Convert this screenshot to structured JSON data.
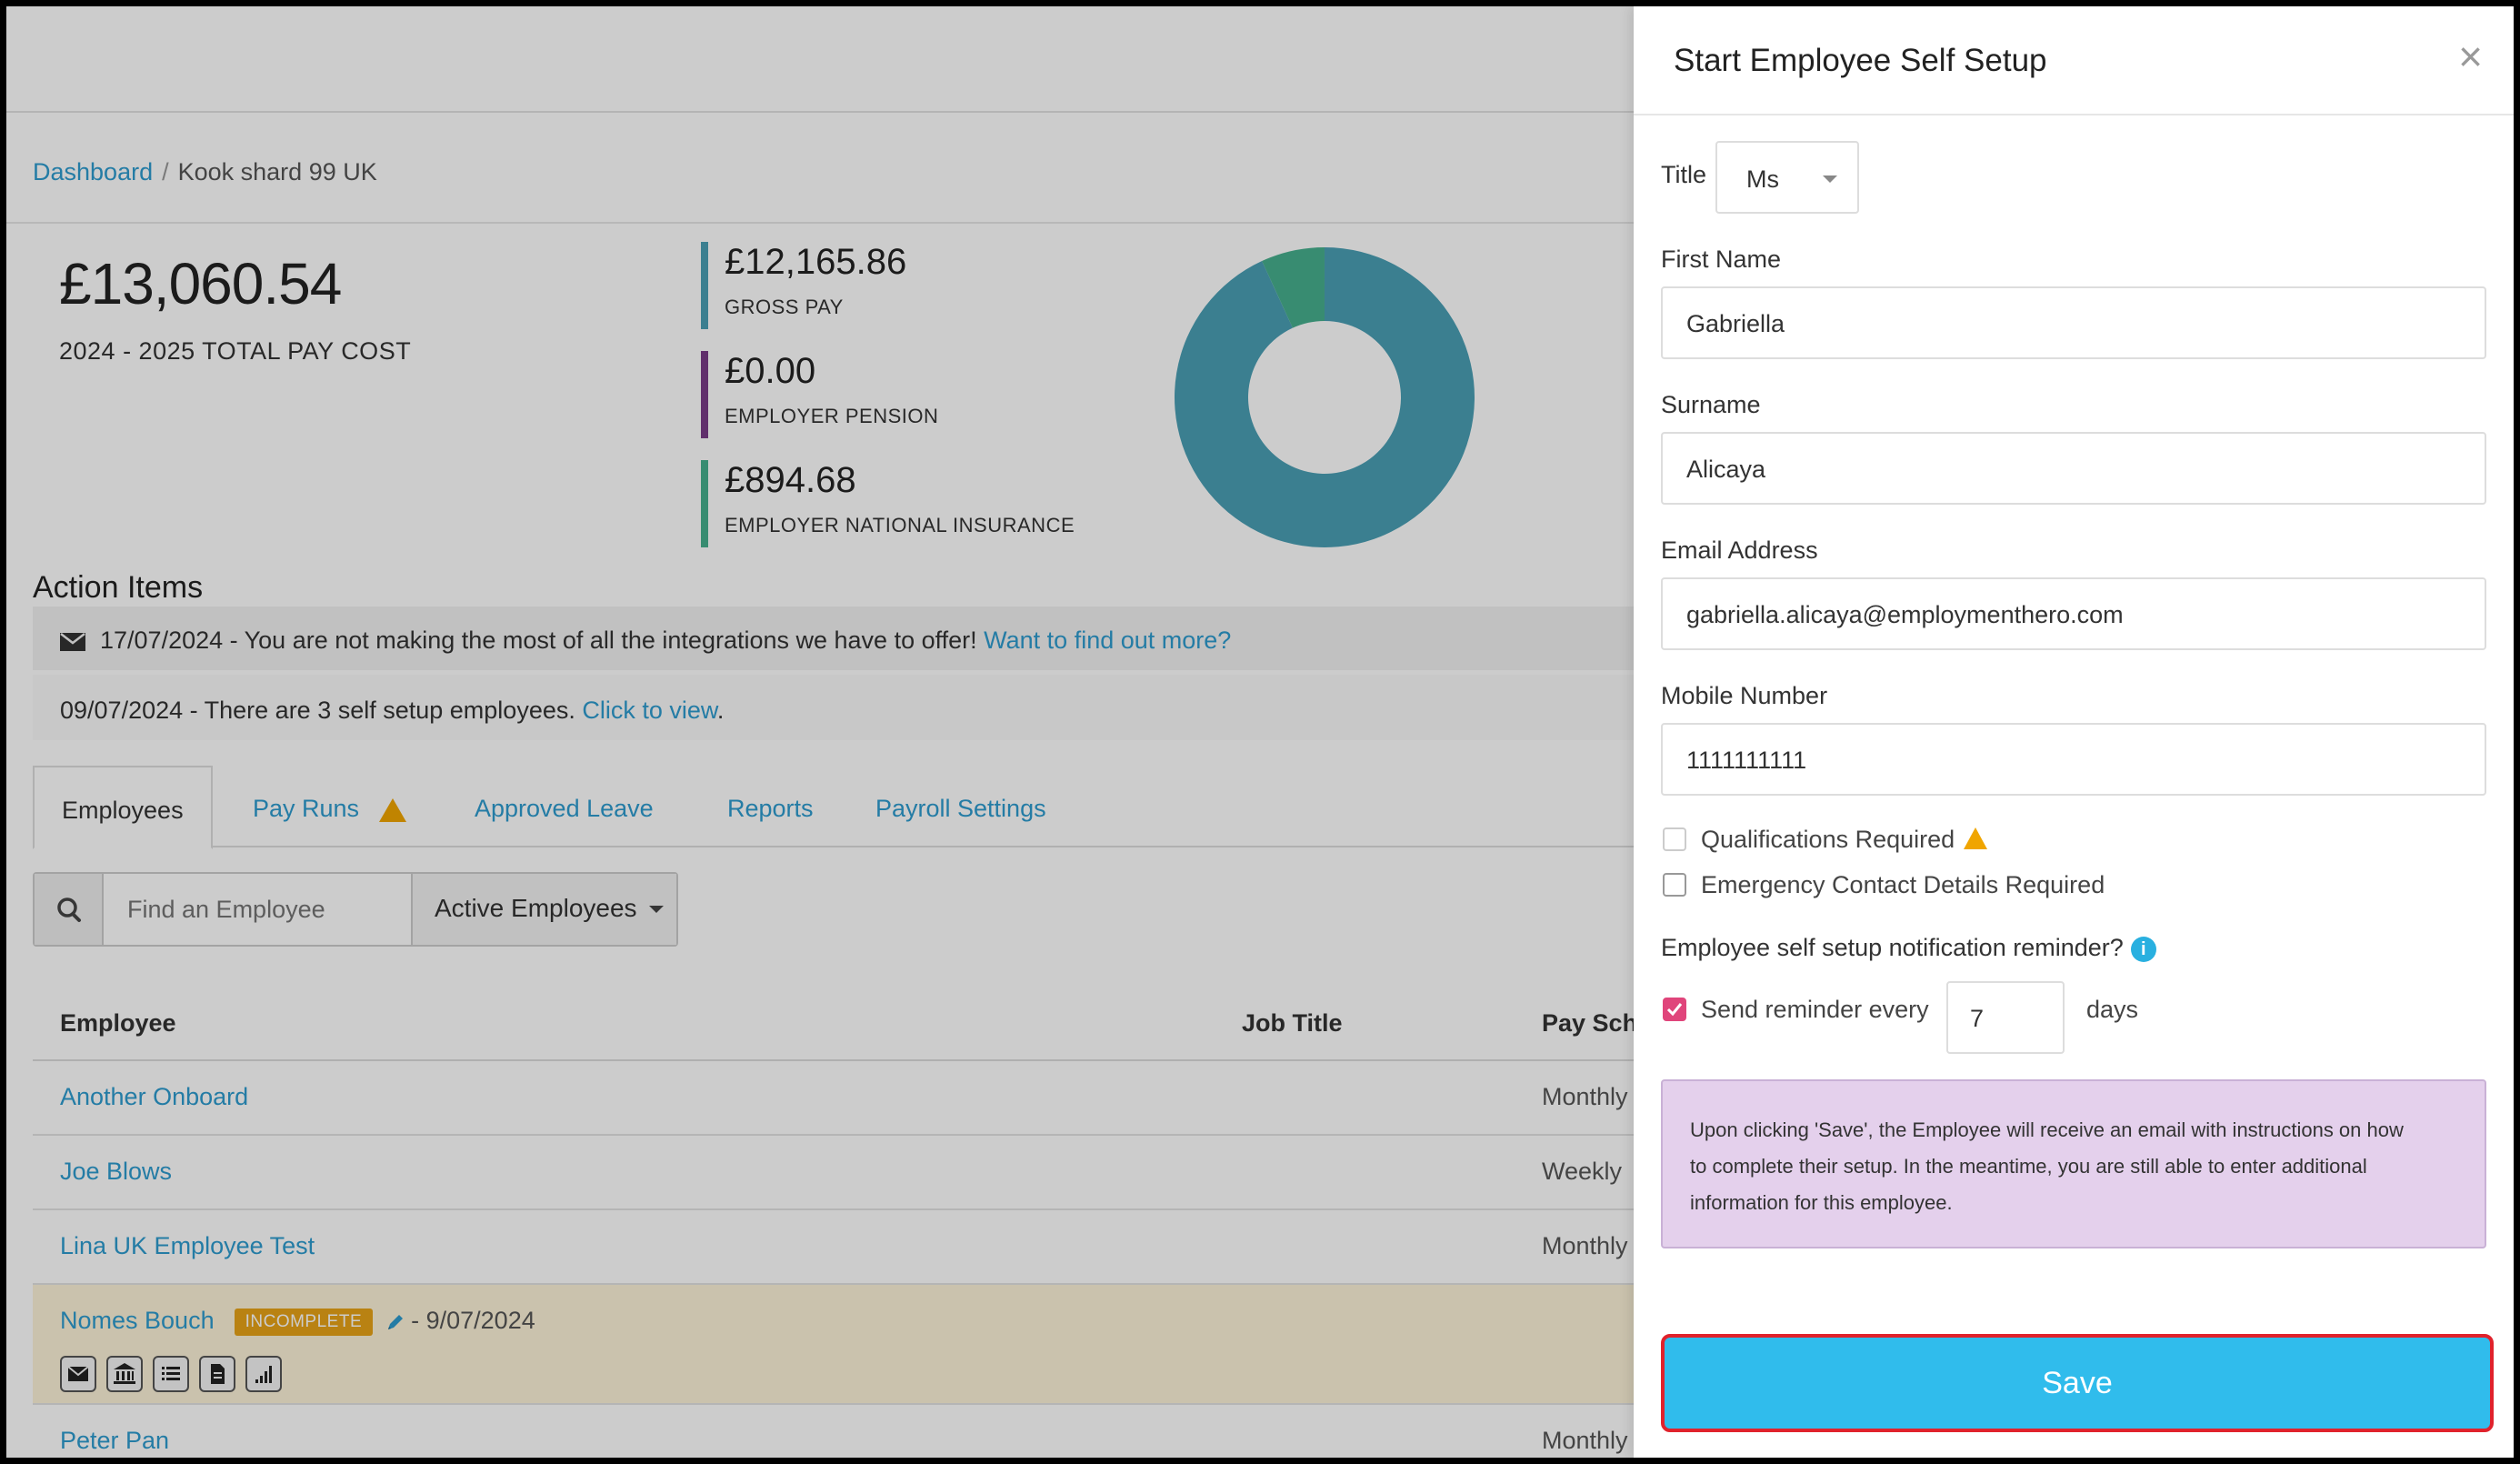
{
  "breadcrumb": {
    "home": "Dashboard",
    "separator": "/",
    "current": "Kook shard 99 UK"
  },
  "stats": {
    "total": {
      "amount": "£13,060.54",
      "label": "2024 - 2025 TOTAL PAY COST"
    },
    "items": [
      {
        "amount": "£12,165.86",
        "label": "GROSS PAY",
        "color": "#4a9fb5"
      },
      {
        "amount": "£0.00",
        "label": "EMPLOYER PENSION",
        "color": "#7a3b87"
      },
      {
        "amount": "£894.68",
        "label": "EMPLOYER NATIONAL INSURANCE",
        "color": "#46b08e"
      }
    ],
    "donut_fractions": {
      "gross_pay": 0.9315,
      "employer_pension": 0.0,
      "employer_ni": 0.0685
    }
  },
  "action_items": {
    "title": "Action Items",
    "alerts": [
      {
        "text": "17/07/2024 - You are not making the most of all the integrations we have to offer!",
        "link": "Want to find out more?",
        "icon": "envelope-icon"
      },
      {
        "text": "09/07/2024 - There are 3 self setup employees.",
        "link": "Click to view",
        "suffix": "."
      }
    ]
  },
  "tabs": [
    "Employees",
    "Pay Runs",
    "Approved Leave",
    "Reports",
    "Payroll Settings"
  ],
  "search": {
    "placeholder": "Find an Employee",
    "filter": "Active Employees"
  },
  "table": {
    "headers": [
      "Employee",
      "Job Title",
      "Pay Sche"
    ],
    "rows": [
      {
        "name": "Another Onboard",
        "schedule": "Monthly"
      },
      {
        "name": "Joe Blows",
        "schedule": "Weekly"
      },
      {
        "name": "Lina UK Employee Test",
        "schedule": "Monthly"
      },
      {
        "name": "Nomes Bouch",
        "badge": "INCOMPLETE",
        "date": "- 9/07/2024",
        "schedule": ""
      },
      {
        "name": "Peter Pan",
        "schedule": "Monthly"
      }
    ]
  },
  "panel": {
    "title": "Start Employee Self Setup",
    "close": "×",
    "title_label": "Title",
    "title_value": "Ms",
    "first_name_label": "First Name",
    "first_name": "Gabriella",
    "surname_label": "Surname",
    "surname": "Alicaya",
    "email_label": "Email Address",
    "email": "gabriella.alicaya@employmenthero.com",
    "mobile_label": "Mobile Number",
    "mobile": "1111111111",
    "qualifications": "Qualifications Required",
    "emergency": "Emergency Contact Details Required",
    "reminder_heading": "Employee self setup notification reminder?",
    "send_reminder": "Send reminder every",
    "reminder_days": "7",
    "days": "days",
    "note_lines": [
      "Upon clicking 'Save', the Employee will receive an email with instructions on how",
      "to complete their setup. In the meantime, you are still able to enter additional",
      "information for this employee."
    ],
    "save": "Save"
  }
}
